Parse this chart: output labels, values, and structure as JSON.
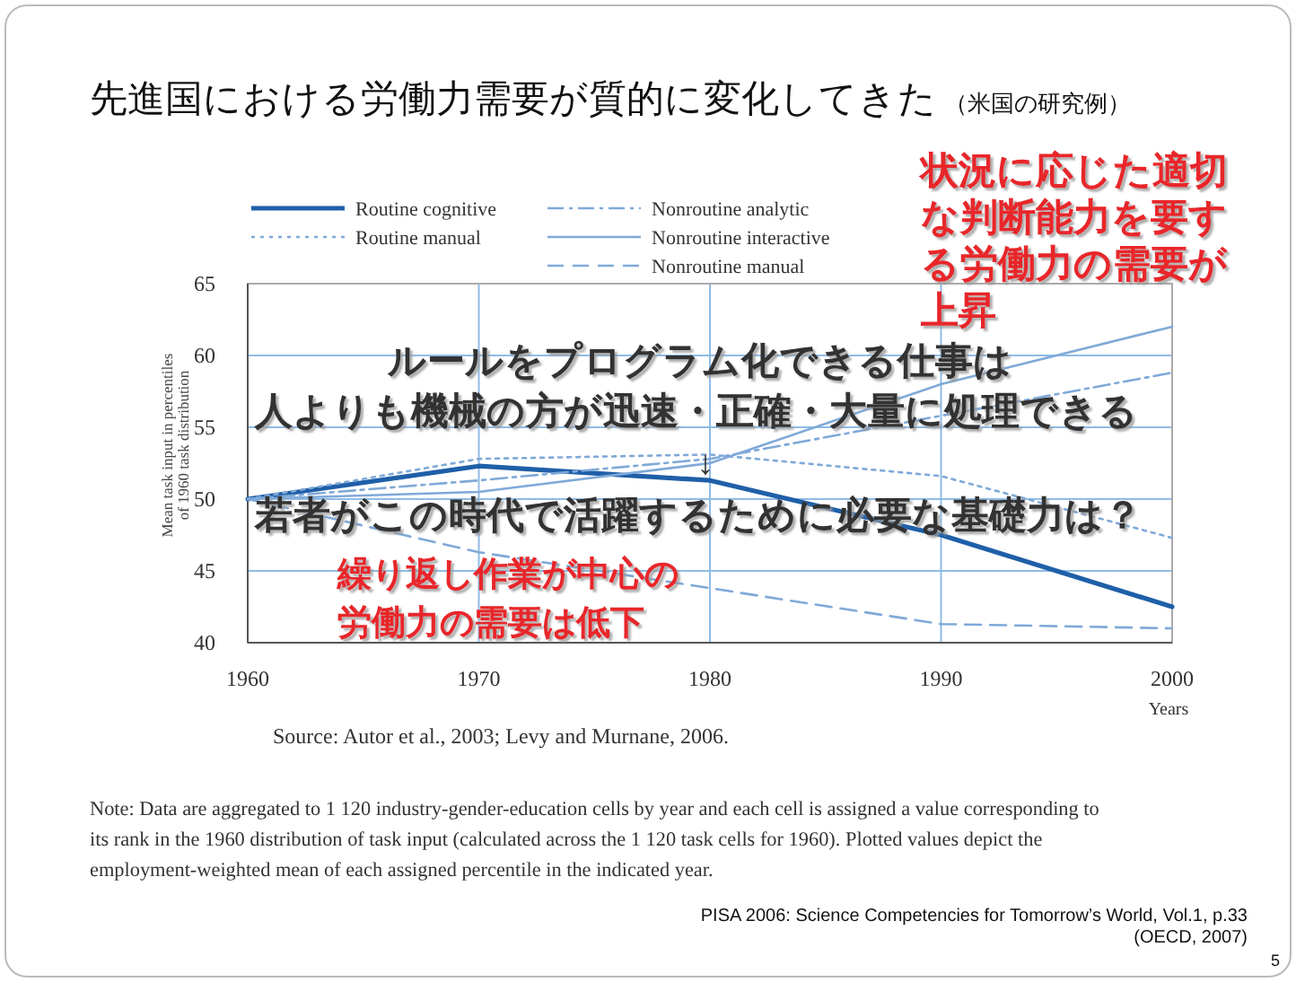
{
  "chart_data": {
    "type": "line",
    "title": "先進国における労働力需要が質的に変化してきた",
    "subtitle": "（米国の研究例）",
    "xlabel": "Years",
    "ylabel": "Mean task input in percentiles of 1960 task distribution",
    "x": [
      1960,
      1970,
      1980,
      1990,
      2000
    ],
    "xlim": [
      1960,
      2000
    ],
    "xticks": [
      1960,
      1970,
      1980,
      1990,
      2000
    ],
    "ylim": [
      40,
      65
    ],
    "yticks": [
      40,
      45,
      50,
      55,
      60,
      65
    ],
    "grid": true,
    "legend": "top",
    "series": [
      {
        "name": "Routine cognitive",
        "color": "#1f5fa8",
        "line_style": "solid",
        "values": [
          50,
          52.3,
          51.3,
          47.5,
          42.5
        ]
      },
      {
        "name": "Routine manual",
        "color": "#7fa9d8",
        "line_style": "dotted",
        "values": [
          50,
          52.8,
          53.1,
          51.6,
          47.3
        ]
      },
      {
        "name": "Nonroutine analytic",
        "color": "#7fa9d8",
        "line_style": "dashdot",
        "values": [
          50,
          51.3,
          52.8,
          55.8,
          58.8
        ]
      },
      {
        "name": "Nonroutine interactive",
        "color": "#7fa9d8",
        "line_style": "solid",
        "values": [
          50,
          50.5,
          52.5,
          58,
          62
        ]
      },
      {
        "name": "Nonroutine manual",
        "color": "#7fa9d8",
        "line_style": "dashed",
        "values": [
          50,
          46.3,
          43.8,
          41.3,
          41
        ]
      }
    ],
    "annotations": [
      "状況に応じた適切な判断能力を要する労働力の需要が上昇",
      "ルールをプログラム化できる仕事は",
      "人よりも機械の方が迅速・正確・大量に処理できる",
      "↓",
      "若者がこの時代で活躍するために必要な基礎力は？",
      "繰り返し作業が中心の労働力の需要は低下",
      "Source: Autor et al., 2003; Levy and Murnane, 2006.",
      "Note: Data are aggregated to 1 120 industry-gender-education cells by year and each cell is assigned a value corresponding to its rank in the 1960 distribution of task input (calculated across the 1 120 task cells for 1960). Plotted values depict the employment-weighted mean of each assigned percentile in the indicated year.",
      "PISA 2006: Science Competencies for Tomorrow’s World, Vol.1, p.33 (OECD, 2007)",
      "5"
    ]
  }
}
